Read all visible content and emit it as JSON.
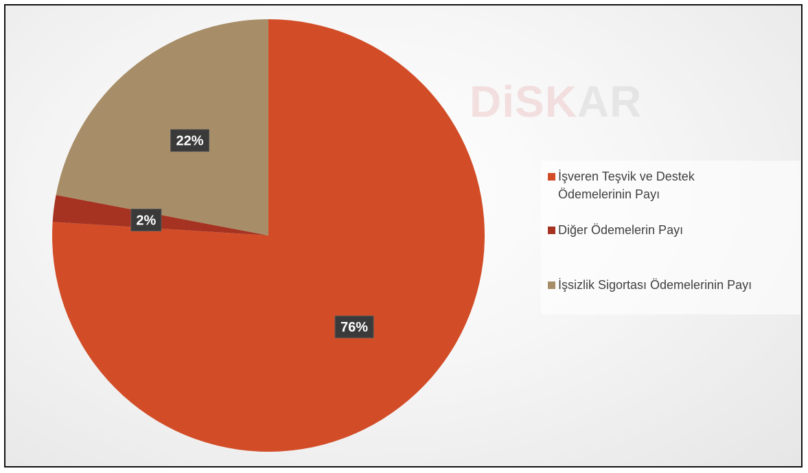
{
  "watermark": {
    "part1": "DiSK",
    "part2": "AR"
  },
  "chart_data": {
    "type": "pie",
    "title": "",
    "legend_position": "right",
    "series": [
      {
        "name": "İşveren Teşvik ve Destek Ödemelerinin Payı",
        "value": 76,
        "label": "76%",
        "color": "#D24D27"
      },
      {
        "name": "Diğer Ödemelerin Payı",
        "value": 2,
        "label": "2%",
        "color": "#A63322"
      },
      {
        "name": "İşsizlik Sigortası Ödemelerinin Payı",
        "value": 22,
        "label": "22%",
        "color": "#A78E68"
      }
    ]
  }
}
